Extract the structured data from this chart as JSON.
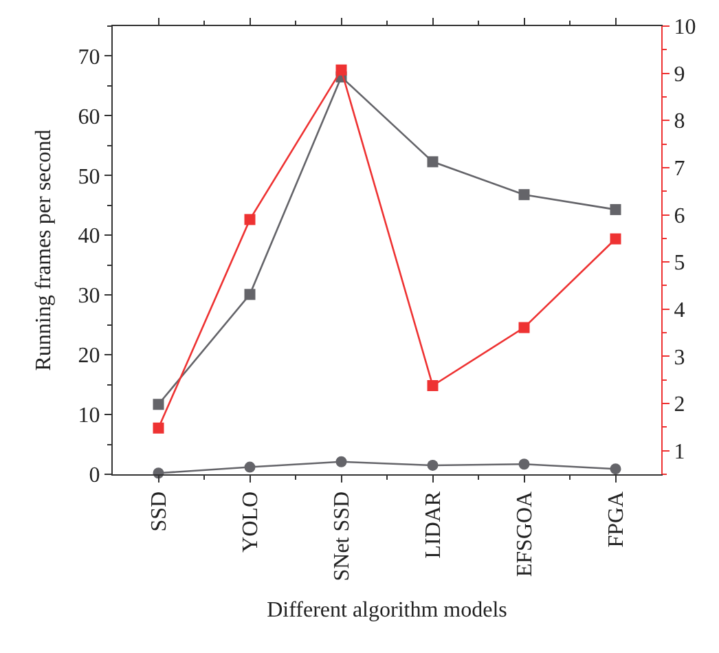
{
  "chart_data": {
    "type": "line",
    "xlabel": "Different algorithm models",
    "ylabel": "Running frames per second",
    "categories": [
      "SSD",
      "YOLO",
      "SNet SSD",
      "LIDAR",
      "EFSGOA",
      "FPGA"
    ],
    "series": [
      {
        "color": "#646469",
        "marker": "square",
        "values": [
          11.7,
          30.1,
          66.5,
          52.3,
          46.8,
          44.3
        ]
      },
      {
        "color": "#646469",
        "marker": "circle",
        "values": [
          0.2,
          1.2,
          2.1,
          1.5,
          1.7,
          0.9
        ]
      },
      {
        "color": "#ee3232",
        "marker": "square",
        "axis": "y2",
        "values": [
          1.48,
          5.9,
          9.07,
          2.38,
          3.61,
          5.49
        ]
      }
    ],
    "ylim": [
      0,
      75
    ],
    "yticks": [
      0,
      10,
      20,
      30,
      40,
      50,
      60,
      70
    ],
    "y2lim": [
      0.5,
      10
    ],
    "y2ticks": [
      1,
      2,
      3,
      4,
      5,
      6,
      7,
      8,
      9,
      10
    ],
    "legend": false,
    "line_style": "solid"
  }
}
